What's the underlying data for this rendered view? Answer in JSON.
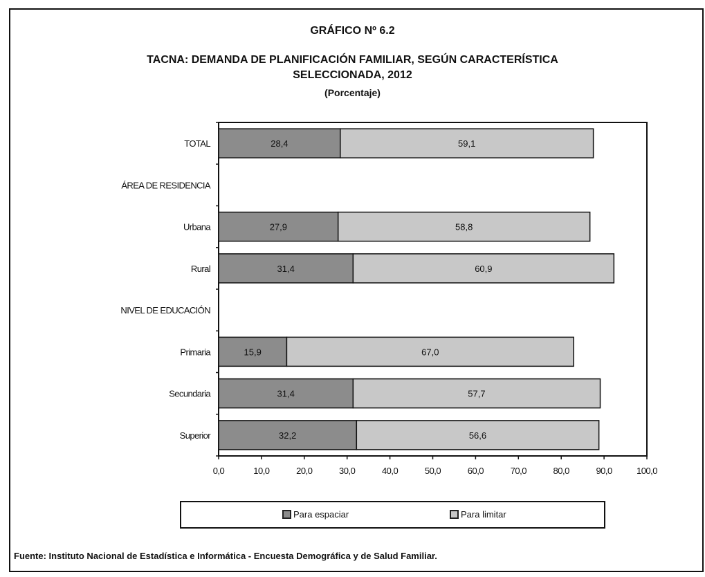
{
  "titles": {
    "line1": "GRÁFICO Nº 6.2",
    "line2": "TACNA:  DEMANDA DE PLANIFICACIÓN FAMILIAR, SEGÚN CARACTERÍSTICA",
    "line3": "SELECCIONADA, 2012",
    "line4": "(Porcentaje)"
  },
  "legend": {
    "series1": "Para espaciar",
    "series2": "Para limitar"
  },
  "source": "Fuente: Instituto Nacional de Estadística e Informática - Encuesta Demográfica y de Salud Familiar.",
  "colors": {
    "espaciar": "#8c8c8c",
    "limitar": "#c8c8c8",
    "border": "#111111"
  },
  "chart_data": {
    "type": "bar",
    "orientation": "horizontal",
    "stacked": true,
    "categories": [
      "TOTAL",
      "ÁREA DE RESIDENCIA",
      "Urbana",
      "Rural",
      "NIVEL DE EDUCACIÓN",
      "Primaria",
      "Secundaria",
      "Superior"
    ],
    "series": [
      {
        "name": "Para espaciar",
        "values": [
          28.4,
          null,
          27.9,
          31.4,
          null,
          15.9,
          31.4,
          32.2
        ]
      },
      {
        "name": "Para limitar",
        "values": [
          59.1,
          null,
          58.8,
          60.9,
          null,
          67.0,
          57.7,
          56.6
        ]
      }
    ],
    "value_labels": {
      "Para espaciar": [
        "28,4",
        "",
        "27,9",
        "31,4",
        "",
        "15,9",
        "31,4",
        "32,2"
      ],
      "Para limitar": [
        "59,1",
        "",
        "58,8",
        "60,9",
        "",
        "67,0",
        "57,7",
        "56,6"
      ]
    },
    "x_ticks": [
      "0,0",
      "10,0",
      "20,0",
      "30,0",
      "40,0",
      "50,0",
      "60,0",
      "70,0",
      "80,0",
      "90,0",
      "100,0"
    ],
    "xlim": [
      0,
      100
    ],
    "legend_position": "bottom",
    "grid": false
  }
}
